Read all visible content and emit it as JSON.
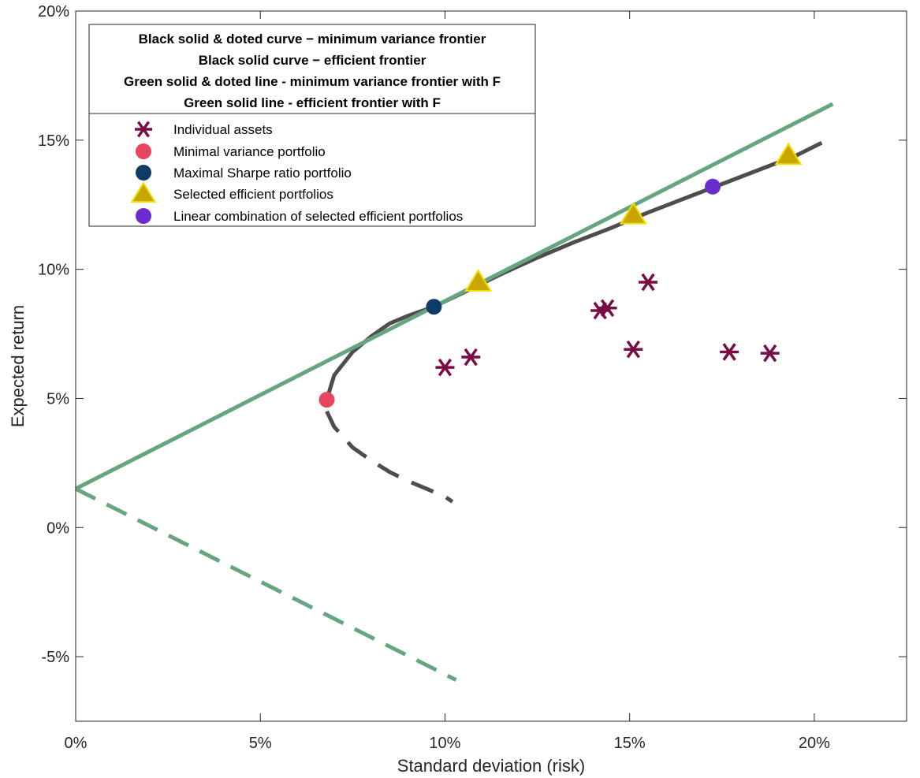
{
  "chart_data": {
    "type": "line",
    "xlabel": "Standard deviation (risk)",
    "ylabel": "Expected return",
    "xlim": [
      0,
      22.5
    ],
    "ylim": [
      -7.5,
      20
    ],
    "x_ticks": [
      0,
      5,
      10,
      15,
      20
    ],
    "x_tick_labels": [
      "0%",
      "5%",
      "10%",
      "15%",
      "20%"
    ],
    "y_ticks": [
      -5,
      0,
      5,
      10,
      15,
      20
    ],
    "y_tick_labels": [
      "-5%",
      "0%",
      "5%",
      "10%",
      "15%",
      "20%"
    ],
    "grid": false,
    "legend_position": "top-left",
    "legend_title_lines": [
      "Black solid & doted curve − minimum variance frontier",
      "Black solid curve − efficient frontier",
      "Green solid & doted line - minimum variance frontier with F",
      "Green solid line - efficient frontier with F"
    ],
    "colors": {
      "frontier": "#4d4d4d",
      "frontier_with_f": "#66a67f",
      "assets": "#7a0b45",
      "min_variance": "#e8455f",
      "max_sharpe": "#0f3c66",
      "selected": "#c9a500",
      "selected_edge": "#f2e000",
      "combination": "#6a2ccc"
    },
    "series": [
      {
        "name": "Individual assets",
        "type": "scatter",
        "marker": "asterisk",
        "x": [
          10.0,
          10.7,
          14.2,
          14.4,
          15.1,
          15.5,
          17.7,
          18.8
        ],
        "y": [
          6.2,
          6.6,
          8.4,
          8.5,
          6.9,
          9.5,
          6.8,
          6.75
        ]
      },
      {
        "name": "Minimal variance portfolio",
        "type": "scatter",
        "marker": "circle",
        "x": [
          6.8
        ],
        "y": [
          4.95
        ]
      },
      {
        "name": "Maximal Sharpe ratio portfolio",
        "type": "scatter",
        "marker": "circle",
        "x": [
          9.7
        ],
        "y": [
          8.55
        ]
      },
      {
        "name": "Selected efficient portfolios",
        "type": "scatter",
        "marker": "triangle",
        "x": [
          10.9,
          15.1,
          19.3
        ],
        "y": [
          9.5,
          12.1,
          14.4
        ]
      },
      {
        "name": "Linear combination of selected efficient portfolios",
        "type": "scatter",
        "marker": "circle",
        "x": [
          17.25
        ],
        "y": [
          13.2
        ]
      },
      {
        "type": "line",
        "style": "solid",
        "x": [
          6.8,
          7.0,
          7.5,
          8.0,
          8.5,
          9.0,
          9.7,
          10.5,
          11.5,
          12.5,
          13.5,
          14.5,
          15.5,
          16.5,
          17.5,
          18.5,
          19.5,
          20.2
        ],
        "y": [
          4.95,
          5.9,
          6.8,
          7.4,
          7.9,
          8.2,
          8.55,
          9.1,
          9.8,
          10.45,
          11.05,
          11.6,
          12.2,
          12.75,
          13.3,
          13.85,
          14.4,
          14.9
        ]
      },
      {
        "type": "line",
        "style": "dashed",
        "x": [
          6.8,
          7.0,
          7.5,
          8.0,
          8.5,
          9.0,
          9.5,
          10.0,
          10.2
        ],
        "y": [
          4.5,
          3.9,
          3.1,
          2.6,
          2.15,
          1.8,
          1.5,
          1.2,
          1.0
        ]
      },
      {
        "type": "line",
        "style": "solid",
        "x": [
          0,
          20.5
        ],
        "y": [
          1.5,
          16.4
        ]
      },
      {
        "type": "line",
        "style": "dashed",
        "x": [
          0,
          10.3
        ],
        "y": [
          1.5,
          -5.9
        ]
      }
    ]
  }
}
